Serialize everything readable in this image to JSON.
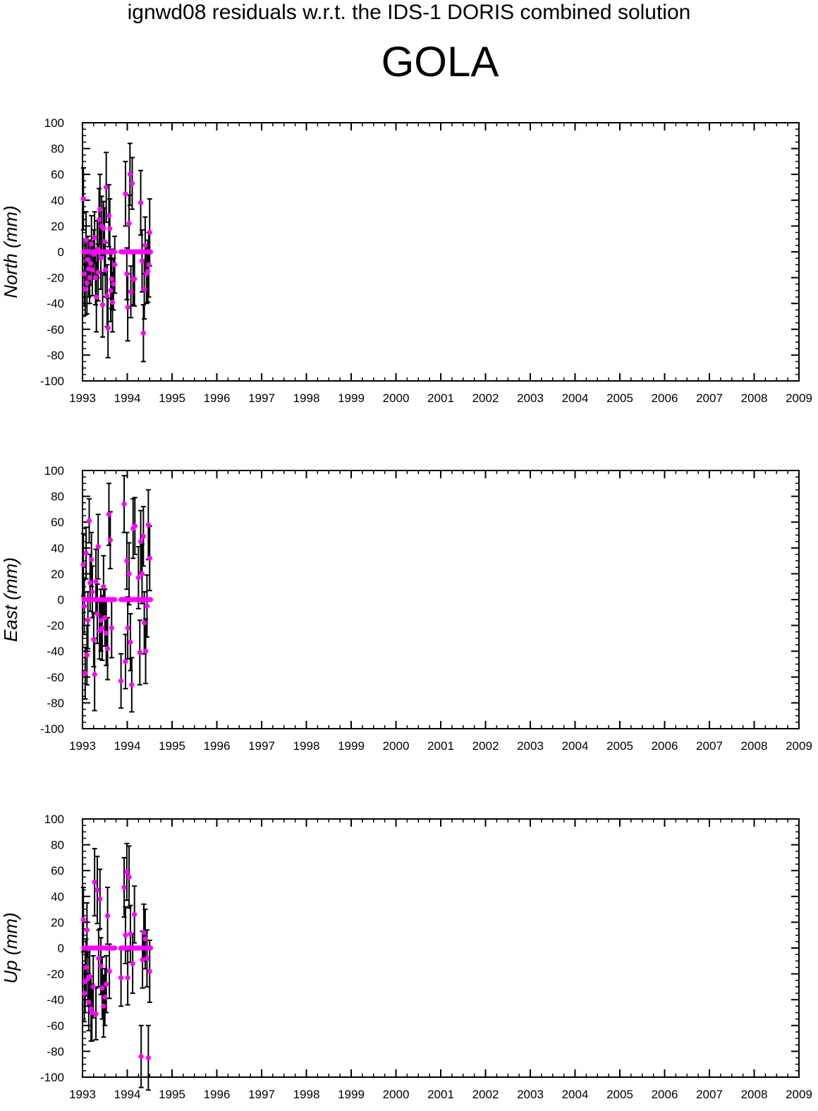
{
  "header": {
    "supertitle": "ignwd08 residuals w.r.t. the IDS-1 DORIS combined solution",
    "station": "GOLA"
  },
  "colors": {
    "marker": "#ff00ff",
    "errorbar": "#000000",
    "axis": "#000000"
  },
  "chart_data": [
    {
      "type": "scatter",
      "ylabel": "North (mm)",
      "xlim": [
        1993,
        2009
      ],
      "ylim": [
        -100,
        100
      ],
      "xticks": [
        "1993",
        "1994",
        "1995",
        "1996",
        "1997",
        "1998",
        "1999",
        "2000",
        "2001",
        "2002",
        "2003",
        "2004",
        "2005",
        "2006",
        "2007",
        "2008",
        "2009"
      ],
      "yticks": [
        "100",
        "80",
        "60",
        "40",
        "20",
        "0",
        "-20",
        "-40",
        "-60",
        "-80",
        "-100"
      ],
      "points": [
        {
          "x": 1993.02,
          "y": 41,
          "err": 24
        },
        {
          "x": 1993.04,
          "y": -17,
          "err": 25
        },
        {
          "x": 1993.06,
          "y": -29,
          "err": 20
        },
        {
          "x": 1993.08,
          "y": 9,
          "err": 22
        },
        {
          "x": 1993.1,
          "y": -24,
          "err": 24
        },
        {
          "x": 1993.12,
          "y": -6,
          "err": 18
        },
        {
          "x": 1993.14,
          "y": -13,
          "err": 22
        },
        {
          "x": 1993.16,
          "y": -20,
          "err": 20
        },
        {
          "x": 1993.18,
          "y": -9,
          "err": 17
        },
        {
          "x": 1993.2,
          "y": 6,
          "err": 22
        },
        {
          "x": 1993.22,
          "y": -14,
          "err": 20
        },
        {
          "x": 1993.25,
          "y": -2,
          "err": 19
        },
        {
          "x": 1993.27,
          "y": 11,
          "err": 20
        },
        {
          "x": 1993.29,
          "y": -20,
          "err": 21
        },
        {
          "x": 1993.31,
          "y": -35,
          "err": 27
        },
        {
          "x": 1993.33,
          "y": 2,
          "err": 22
        },
        {
          "x": 1993.35,
          "y": -16,
          "err": 22
        },
        {
          "x": 1993.37,
          "y": 25,
          "err": 24
        },
        {
          "x": 1993.39,
          "y": 33,
          "err": 27
        },
        {
          "x": 1993.41,
          "y": -5,
          "err": 24
        },
        {
          "x": 1993.43,
          "y": 20,
          "err": 23
        },
        {
          "x": 1993.45,
          "y": -41,
          "err": 25
        },
        {
          "x": 1993.47,
          "y": 18,
          "err": 21
        },
        {
          "x": 1993.49,
          "y": 8,
          "err": 26
        },
        {
          "x": 1993.51,
          "y": -14,
          "err": 21
        },
        {
          "x": 1993.53,
          "y": 50,
          "err": 27
        },
        {
          "x": 1993.55,
          "y": -34,
          "err": 24
        },
        {
          "x": 1993.57,
          "y": -59,
          "err": 23
        },
        {
          "x": 1993.59,
          "y": 28,
          "err": 24
        },
        {
          "x": 1993.61,
          "y": 18,
          "err": 23
        },
        {
          "x": 1993.63,
          "y": -30,
          "err": 24
        },
        {
          "x": 1993.65,
          "y": -21,
          "err": 23
        },
        {
          "x": 1993.67,
          "y": -39,
          "err": 23
        },
        {
          "x": 1993.69,
          "y": -25,
          "err": 20
        },
        {
          "x": 1993.72,
          "y": -10,
          "err": 22
        },
        {
          "x": 1993.96,
          "y": 45,
          "err": 25
        },
        {
          "x": 1993.99,
          "y": -17,
          "err": 20
        },
        {
          "x": 1994.01,
          "y": -43,
          "err": 26
        },
        {
          "x": 1994.04,
          "y": 22,
          "err": 22
        },
        {
          "x": 1994.06,
          "y": 60,
          "err": 24
        },
        {
          "x": 1994.08,
          "y": -31,
          "err": 20
        },
        {
          "x": 1994.11,
          "y": 53,
          "err": 20
        },
        {
          "x": 1994.13,
          "y": -21,
          "err": 20
        },
        {
          "x": 1994.16,
          "y": -21,
          "err": 21
        },
        {
          "x": 1994.3,
          "y": 38,
          "err": 25
        },
        {
          "x": 1994.33,
          "y": -7,
          "err": 24
        },
        {
          "x": 1994.36,
          "y": -63,
          "err": 22
        },
        {
          "x": 1994.38,
          "y": -29,
          "err": 23
        },
        {
          "x": 1994.4,
          "y": 5,
          "err": 22
        },
        {
          "x": 1994.43,
          "y": -17,
          "err": 23
        },
        {
          "x": 1994.46,
          "y": -15,
          "err": 24
        },
        {
          "x": 1994.48,
          "y": -10,
          "err": 25
        },
        {
          "x": 1994.5,
          "y": 15,
          "err": 26
        }
      ],
      "zero_points": [
        1993.03,
        1993.06,
        1993.09,
        1993.12,
        1993.15,
        1993.18,
        1993.21,
        1993.24,
        1993.27,
        1993.3,
        1993.33,
        1993.36,
        1993.39,
        1993.42,
        1993.45,
        1993.48,
        1993.51,
        1993.54,
        1993.57,
        1993.6,
        1993.63,
        1993.66,
        1993.69,
        1993.72,
        1993.86,
        1993.89,
        1993.92,
        1993.95,
        1993.98,
        1994.01,
        1994.04,
        1994.07,
        1994.1,
        1994.13,
        1994.16,
        1994.19,
        1994.22,
        1994.25,
        1994.28,
        1994.31,
        1994.34,
        1994.37,
        1994.4,
        1994.43,
        1994.46,
        1994.49,
        1994.52
      ]
    },
    {
      "type": "scatter",
      "ylabel": "East (mm)",
      "xlim": [
        1993,
        2009
      ],
      "ylim": [
        -100,
        100
      ],
      "xticks": [
        "1993",
        "1994",
        "1995",
        "1996",
        "1997",
        "1998",
        "1999",
        "2000",
        "2001",
        "2002",
        "2003",
        "2004",
        "2005",
        "2006",
        "2007",
        "2008",
        "2009"
      ],
      "yticks": [
        "100",
        "80",
        "60",
        "40",
        "20",
        "0",
        "-20",
        "-40",
        "-60",
        "-80",
        "-100"
      ],
      "points": [
        {
          "x": 1993.02,
          "y": 27,
          "err": 24
        },
        {
          "x": 1993.04,
          "y": -5,
          "err": 22
        },
        {
          "x": 1993.06,
          "y": -57,
          "err": 20
        },
        {
          "x": 1993.08,
          "y": 36,
          "err": 20
        },
        {
          "x": 1993.1,
          "y": -43,
          "err": 23
        },
        {
          "x": 1993.12,
          "y": -16,
          "err": 22
        },
        {
          "x": 1993.15,
          "y": 61,
          "err": 17
        },
        {
          "x": 1993.17,
          "y": 13,
          "err": 22
        },
        {
          "x": 1993.2,
          "y": 31,
          "err": 21
        },
        {
          "x": 1993.22,
          "y": 6,
          "err": 20
        },
        {
          "x": 1993.25,
          "y": -31,
          "err": 21
        },
        {
          "x": 1993.27,
          "y": -58,
          "err": 28
        },
        {
          "x": 1993.3,
          "y": 14,
          "err": 25
        },
        {
          "x": 1993.33,
          "y": -11,
          "err": 23
        },
        {
          "x": 1993.35,
          "y": 41,
          "err": 25
        },
        {
          "x": 1993.38,
          "y": -24,
          "err": 22
        },
        {
          "x": 1993.41,
          "y": -16,
          "err": 24
        },
        {
          "x": 1993.44,
          "y": -22,
          "err": 25
        },
        {
          "x": 1993.47,
          "y": 10,
          "err": 24
        },
        {
          "x": 1993.5,
          "y": -14,
          "err": 22
        },
        {
          "x": 1993.53,
          "y": -26,
          "err": 25
        },
        {
          "x": 1993.56,
          "y": -38,
          "err": 24
        },
        {
          "x": 1993.59,
          "y": 66,
          "err": 24
        },
        {
          "x": 1993.62,
          "y": 46,
          "err": 22
        },
        {
          "x": 1993.65,
          "y": -22,
          "err": 23
        },
        {
          "x": 1993.86,
          "y": -63,
          "err": 21
        },
        {
          "x": 1993.93,
          "y": 74,
          "err": 22
        },
        {
          "x": 1993.96,
          "y": -48,
          "err": 21
        },
        {
          "x": 1993.99,
          "y": 30,
          "err": 22
        },
        {
          "x": 1994.01,
          "y": -22,
          "err": 24
        },
        {
          "x": 1994.04,
          "y": 20,
          "err": 24
        },
        {
          "x": 1994.07,
          "y": -33,
          "err": 22
        },
        {
          "x": 1994.1,
          "y": -66,
          "err": 21
        },
        {
          "x": 1994.13,
          "y": 55,
          "err": 23
        },
        {
          "x": 1994.17,
          "y": 57,
          "err": 22
        },
        {
          "x": 1994.25,
          "y": 17,
          "err": 24
        },
        {
          "x": 1994.28,
          "y": -41,
          "err": 25
        },
        {
          "x": 1994.3,
          "y": 45,
          "err": 24
        },
        {
          "x": 1994.33,
          "y": 20,
          "err": 23
        },
        {
          "x": 1994.36,
          "y": 49,
          "err": 23
        },
        {
          "x": 1994.38,
          "y": -18,
          "err": 24
        },
        {
          "x": 1994.41,
          "y": -40,
          "err": 25
        },
        {
          "x": 1994.44,
          "y": -5,
          "err": 24
        },
        {
          "x": 1994.47,
          "y": 58,
          "err": 27
        },
        {
          "x": 1994.5,
          "y": 32,
          "err": 25
        }
      ],
      "zero_points": [
        1993.03,
        1993.06,
        1993.09,
        1993.12,
        1993.15,
        1993.18,
        1993.21,
        1993.24,
        1993.27,
        1993.3,
        1993.33,
        1993.36,
        1993.39,
        1993.42,
        1993.45,
        1993.48,
        1993.51,
        1993.54,
        1993.57,
        1993.6,
        1993.63,
        1993.66,
        1993.69,
        1993.72,
        1993.86,
        1993.89,
        1993.92,
        1993.95,
        1993.98,
        1994.01,
        1994.04,
        1994.07,
        1994.1,
        1994.13,
        1994.16,
        1994.19,
        1994.22,
        1994.25,
        1994.28,
        1994.31,
        1994.34,
        1994.37,
        1994.4,
        1994.43,
        1994.46,
        1994.49,
        1994.52
      ]
    },
    {
      "type": "scatter",
      "ylabel": "Up (mm)",
      "xlim": [
        1993,
        2009
      ],
      "ylim": [
        -100,
        100
      ],
      "xticks": [
        "1993",
        "1994",
        "1995",
        "1996",
        "1997",
        "1998",
        "1999",
        "2000",
        "2001",
        "2002",
        "2003",
        "2004",
        "2005",
        "2006",
        "2007",
        "2008",
        "2009"
      ],
      "yticks": [
        "100",
        "80",
        "60",
        "40",
        "20",
        "0",
        "-20",
        "-40",
        "-60",
        "-80",
        "-100"
      ],
      "points": [
        {
          "x": 1993.02,
          "y": 22,
          "err": 25
        },
        {
          "x": 1993.04,
          "y": -35,
          "err": 22
        },
        {
          "x": 1993.06,
          "y": -26,
          "err": 24
        },
        {
          "x": 1993.08,
          "y": -15,
          "err": 22
        },
        {
          "x": 1993.1,
          "y": 14,
          "err": 21
        },
        {
          "x": 1993.12,
          "y": -24,
          "err": 21
        },
        {
          "x": 1993.14,
          "y": -42,
          "err": 22
        },
        {
          "x": 1993.16,
          "y": -22,
          "err": 23
        },
        {
          "x": 1993.19,
          "y": -47,
          "err": 25
        },
        {
          "x": 1993.21,
          "y": -50,
          "err": 22
        },
        {
          "x": 1993.24,
          "y": -30,
          "err": 24
        },
        {
          "x": 1993.27,
          "y": 51,
          "err": 26
        },
        {
          "x": 1993.3,
          "y": -51,
          "err": 20
        },
        {
          "x": 1993.33,
          "y": 45,
          "err": 26
        },
        {
          "x": 1993.36,
          "y": -8,
          "err": 22
        },
        {
          "x": 1993.39,
          "y": 38,
          "err": 23
        },
        {
          "x": 1993.41,
          "y": -14,
          "err": 22
        },
        {
          "x": 1993.44,
          "y": -31,
          "err": 24
        },
        {
          "x": 1993.47,
          "y": -45,
          "err": 24
        },
        {
          "x": 1993.5,
          "y": -38,
          "err": 22
        },
        {
          "x": 1993.53,
          "y": -28,
          "err": 22
        },
        {
          "x": 1993.56,
          "y": 25,
          "err": 22
        },
        {
          "x": 1993.6,
          "y": -18,
          "err": 21
        },
        {
          "x": 1993.86,
          "y": -23,
          "err": 22
        },
        {
          "x": 1993.93,
          "y": 47,
          "err": 23
        },
        {
          "x": 1993.96,
          "y": 10,
          "err": 22
        },
        {
          "x": 1993.99,
          "y": 59,
          "err": 22
        },
        {
          "x": 1994.01,
          "y": -23,
          "err": 21
        },
        {
          "x": 1994.04,
          "y": 55,
          "err": 24
        },
        {
          "x": 1994.07,
          "y": 11,
          "err": 22
        },
        {
          "x": 1994.12,
          "y": -12,
          "err": 23
        },
        {
          "x": 1994.16,
          "y": 26,
          "err": 22
        },
        {
          "x": 1994.31,
          "y": -84,
          "err": 24
        },
        {
          "x": 1994.34,
          "y": -9,
          "err": 22
        },
        {
          "x": 1994.37,
          "y": 12,
          "err": 22
        },
        {
          "x": 1994.4,
          "y": 7,
          "err": 23
        },
        {
          "x": 1994.44,
          "y": -8,
          "err": 22
        },
        {
          "x": 1994.47,
          "y": -85,
          "err": 25
        },
        {
          "x": 1994.5,
          "y": -18,
          "err": 24
        }
      ],
      "zero_points": [
        1993.03,
        1993.06,
        1993.09,
        1993.12,
        1993.15,
        1993.18,
        1993.21,
        1993.24,
        1993.27,
        1993.3,
        1993.33,
        1993.36,
        1993.39,
        1993.42,
        1993.45,
        1993.48,
        1993.51,
        1993.54,
        1993.57,
        1993.6,
        1993.63,
        1993.66,
        1993.69,
        1993.72,
        1993.86,
        1993.89,
        1993.92,
        1993.95,
        1993.98,
        1994.01,
        1994.04,
        1994.07,
        1994.1,
        1994.13,
        1994.16,
        1994.19,
        1994.22,
        1994.25,
        1994.28,
        1994.31,
        1994.34,
        1994.37,
        1994.4,
        1994.43,
        1994.46,
        1994.49,
        1994.52
      ]
    }
  ]
}
